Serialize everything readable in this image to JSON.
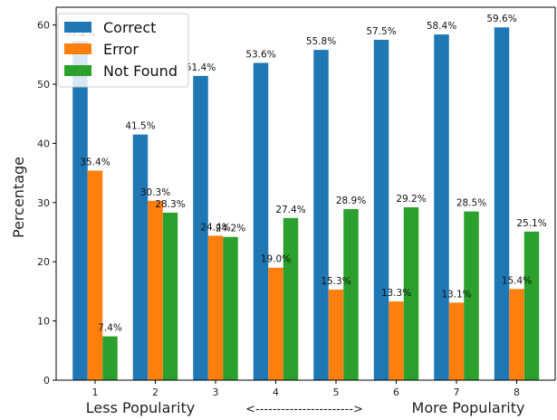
{
  "chart_data": {
    "type": "bar",
    "title": "",
    "ylabel": "Percentage",
    "xlabel": "",
    "ylim": [
      0,
      63
    ],
    "yticks": [
      0,
      10,
      20,
      30,
      40,
      50,
      60
    ],
    "grid": false,
    "legend_position": "top-left",
    "categories": [
      "1",
      "2",
      "3",
      "4",
      "5",
      "6",
      "7",
      "8"
    ],
    "series": [
      {
        "name": "Correct",
        "color": "#1f77b4",
        "values": [
          57.2,
          41.5,
          51.4,
          53.6,
          55.8,
          57.5,
          58.4,
          59.6
        ],
        "labels": [
          "57.2%",
          "41.5%",
          "51.4%",
          "53.6%",
          "55.8%",
          "57.5%",
          "58.4%",
          "59.6%"
        ]
      },
      {
        "name": "Error",
        "color": "#ff7f0e",
        "values": [
          35.4,
          30.3,
          24.4,
          19.0,
          15.3,
          13.3,
          13.1,
          15.4
        ],
        "labels": [
          "35.4%",
          "30.3%",
          "24.4%",
          "19.0%",
          "15.3%",
          "13.3%",
          "13.1%",
          "15.4%"
        ]
      },
      {
        "name": "Not Found",
        "color": "#2ca02c",
        "values": [
          7.4,
          28.3,
          24.2,
          27.4,
          28.9,
          29.2,
          28.5,
          25.1
        ],
        "labels": [
          "7.4%",
          "28.3%",
          "24.2%",
          "27.4%",
          "28.9%",
          "29.2%",
          "28.5%",
          "25.1%"
        ]
      }
    ],
    "annotations": {
      "left": "Less Popularity",
      "middle": "<----------------------->",
      "right": "More Popularity"
    }
  }
}
